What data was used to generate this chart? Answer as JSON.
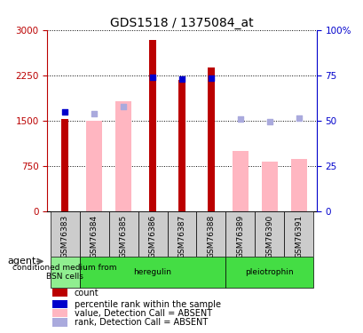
{
  "title": "GDS1518 / 1375084_at",
  "samples": [
    "GSM76383",
    "GSM76384",
    "GSM76385",
    "GSM76386",
    "GSM76387",
    "GSM76388",
    "GSM76389",
    "GSM76390",
    "GSM76391"
  ],
  "count_values": [
    1530,
    null,
    null,
    2830,
    2170,
    2380,
    null,
    null,
    null
  ],
  "rank_values": [
    1640,
    null,
    null,
    2210,
    2190,
    2200,
    null,
    null,
    null
  ],
  "absent_value": [
    null,
    1500,
    1820,
    null,
    null,
    null,
    1000,
    820,
    870
  ],
  "absent_rank": [
    null,
    1620,
    1730,
    null,
    null,
    null,
    1530,
    1480,
    1540
  ],
  "count_color": "#BB0000",
  "rank_color": "#0000CC",
  "absent_val_color": "#FFB6C1",
  "absent_rank_color": "#AAAADD",
  "ylim_left": [
    0,
    3000
  ],
  "ylim_right": [
    0,
    100
  ],
  "yticks_left": [
    0,
    750,
    1500,
    2250,
    3000
  ],
  "ytick_labels_left": [
    "0",
    "750",
    "1500",
    "2250",
    "3000"
  ],
  "yticks_right": [
    0,
    25,
    50,
    75,
    100
  ],
  "ytick_labels_right": [
    "0",
    "25",
    "50",
    "75",
    "100%"
  ],
  "group_defs": [
    {
      "indices": [
        0
      ],
      "label": "conditioned medium from\nBSN cells",
      "color": "#90EE90"
    },
    {
      "indices": [
        1,
        2,
        3,
        4,
        5
      ],
      "label": "heregulin",
      "color": "#44DD44"
    },
    {
      "indices": [
        6,
        7,
        8
      ],
      "label": "pleiotrophin",
      "color": "#44DD44"
    }
  ],
  "legend_items": [
    {
      "label": "count",
      "color": "#BB0000"
    },
    {
      "label": "percentile rank within the sample",
      "color": "#0000CC"
    },
    {
      "label": "value, Detection Call = ABSENT",
      "color": "#FFB6C1"
    },
    {
      "label": "rank, Detection Call = ABSENT",
      "color": "#AAAADD"
    }
  ],
  "axis_color_left": "#BB0000",
  "axis_color_right": "#0000CC",
  "background_color": "#FFFFFF",
  "grid_color": "#000000"
}
